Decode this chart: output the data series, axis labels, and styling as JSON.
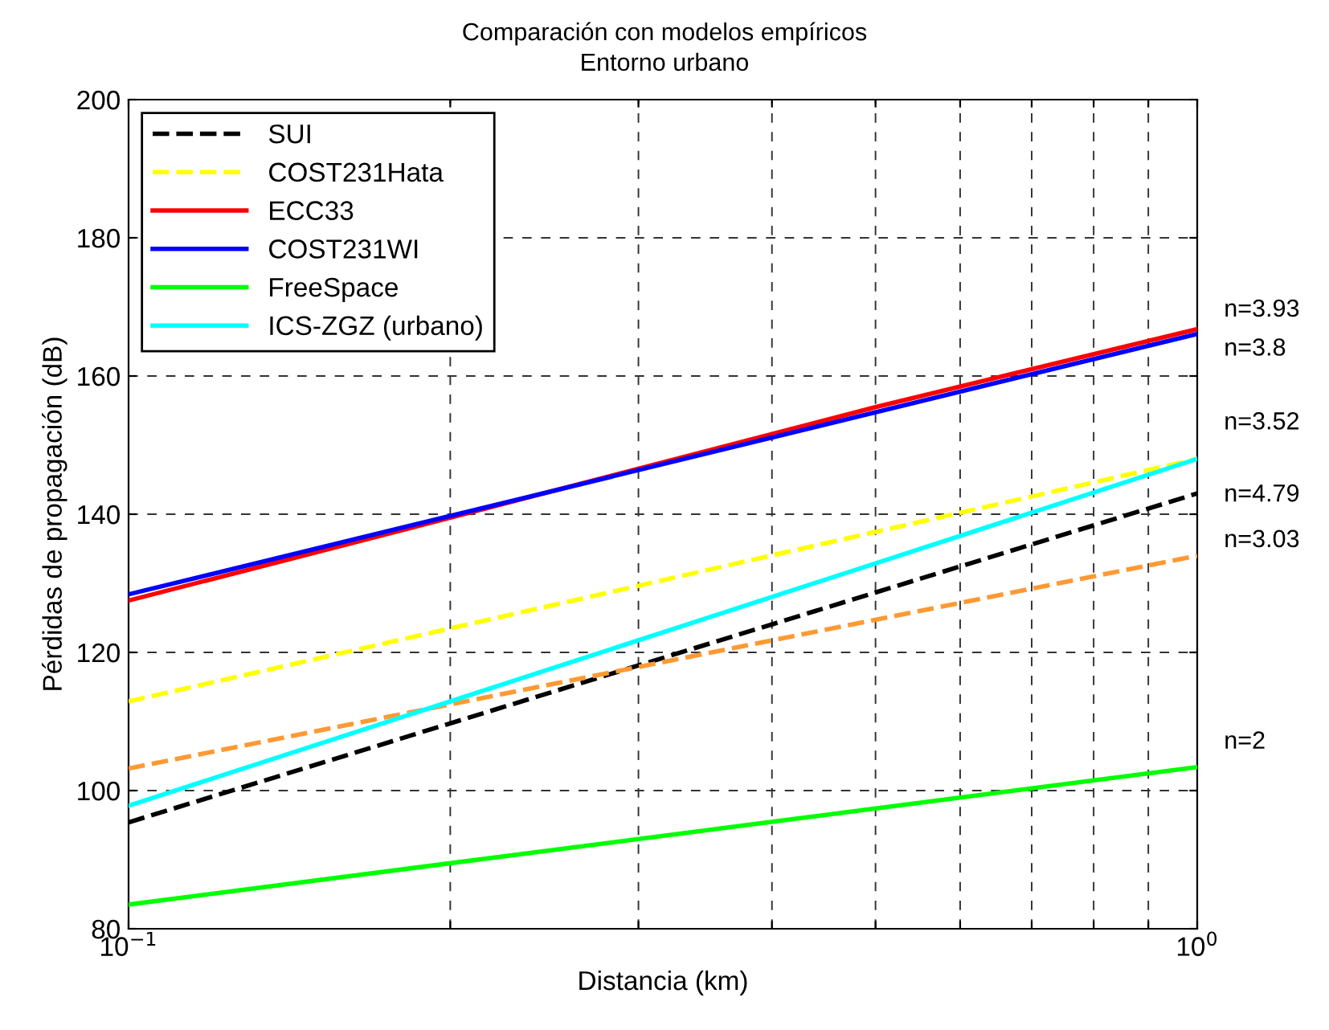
{
  "chart_data": {
    "type": "line",
    "title": "Comparación con modelos empíricos",
    "subtitle": "Entorno urbano",
    "xlabel": "Distancia (km)",
    "ylabel": "Pérdidas de propagación (dB)",
    "log": "x",
    "xlim": [
      0.1,
      1
    ],
    "ylim": [
      80,
      200
    ],
    "xticks": [
      {
        "value": 0.1,
        "label": "10$^{−1}$"
      },
      {
        "value": 0.2,
        "label": null
      },
      {
        "value": 0.3,
        "label": null
      },
      {
        "value": 0.4,
        "label": null
      },
      {
        "value": 0.5,
        "label": null
      },
      {
        "value": 0.6,
        "label": null
      },
      {
        "value": 0.7,
        "label": null
      },
      {
        "value": 0.8,
        "label": null
      },
      {
        "value": 0.9,
        "label": null
      },
      {
        "value": 1,
        "label": "10$^{0}$"
      }
    ],
    "yticks": [
      80,
      100,
      120,
      140,
      160,
      180,
      200
    ],
    "grid": true,
    "legend": "top left",
    "marker": "none",
    "series": [
      {
        "name": "SUI",
        "color": "#000000",
        "line_style": "dashed",
        "x": [
          0.1,
          1
        ],
        "values": [
          95.4,
          143
        ]
      },
      {
        "name": "COST231Hata",
        "color": "#ffff00",
        "line_style": "dashed",
        "x": [
          0.1,
          1
        ],
        "values": [
          112.9,
          148
        ]
      },
      {
        "name": "ECC33",
        "color": "#ff0000",
        "line_style": "solid",
        "x": [
          0.1,
          0.2,
          0.5,
          1
        ],
        "values": [
          127.5,
          139.5,
          155.5,
          166.8
        ]
      },
      {
        "color": "#ff9933",
        "line_style": "dashed",
        "x": [
          0.1,
          1
        ],
        "values": [
          103.2,
          134
        ]
      },
      {
        "name": "COST231WI",
        "color": "#0000ff",
        "line_style": "solid",
        "x": [
          0.1,
          1
        ],
        "values": [
          128.4,
          166.1
        ]
      },
      {
        "name": "FreeSpace",
        "color": "#00ff00",
        "line_style": "solid",
        "x": [
          0.1,
          1
        ],
        "values": [
          83.5,
          103.4
        ]
      },
      {
        "name": "ICS-ZGZ (urbano)",
        "color": "#00ffff",
        "line_style": "solid",
        "x": [
          0.1,
          1
        ],
        "values": [
          97.8,
          148
        ]
      }
    ],
    "annotations": [
      "n=3.93",
      "n=3.8",
      "n=3.52",
      "n=4.79",
      "n=3.03",
      "n=2"
    ]
  }
}
